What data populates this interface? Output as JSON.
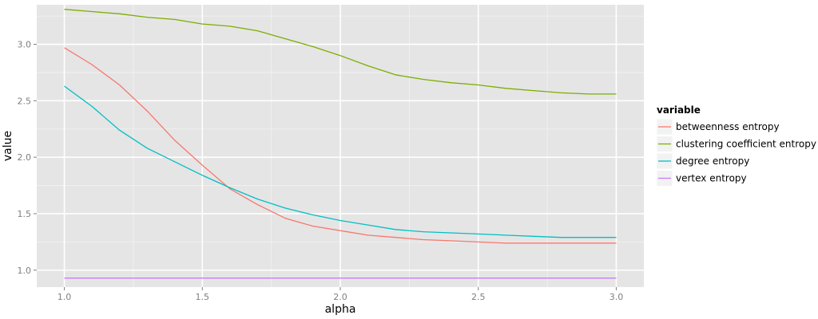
{
  "chart_data": {
    "type": "line",
    "title": "",
    "xlabel": "alpha",
    "ylabel": "value",
    "xlim": [
      0.9,
      3.1
    ],
    "ylim": [
      0.85,
      3.35
    ],
    "xticks": [
      1.0,
      1.5,
      2.0,
      2.5,
      3.0
    ],
    "xtick_labels": [
      "1.0",
      "1.5",
      "2.0",
      "2.5",
      "3.0"
    ],
    "yticks": [
      1.0,
      1.5,
      2.0,
      2.5,
      3.0
    ],
    "ytick_labels": [
      "1.0",
      "1.5",
      "2.0",
      "2.5",
      "3.0"
    ],
    "grid": true,
    "legend": {
      "title": "variable",
      "position": "right",
      "entries": [
        "betweenness entropy",
        "clustering coefficient entropy",
        "degree entropy",
        "vertex entropy"
      ]
    },
    "x": [
      1.0,
      1.1,
      1.2,
      1.3,
      1.4,
      1.5,
      1.6,
      1.7,
      1.8,
      1.9,
      2.0,
      2.1,
      2.2,
      2.3,
      2.4,
      2.5,
      2.6,
      2.7,
      2.8,
      2.9,
      3.0
    ],
    "series": [
      {
        "name": "betweenness entropy",
        "color": "#F8766D",
        "values": [
          2.97,
          2.82,
          2.64,
          2.41,
          2.15,
          1.93,
          1.72,
          1.58,
          1.46,
          1.39,
          1.35,
          1.31,
          1.29,
          1.27,
          1.26,
          1.25,
          1.24,
          1.24,
          1.24,
          1.24,
          1.24
        ]
      },
      {
        "name": "clustering coefficient entropy",
        "color": "#7CAE00",
        "values": [
          3.31,
          3.29,
          3.27,
          3.24,
          3.22,
          3.18,
          3.16,
          3.12,
          3.05,
          2.98,
          2.9,
          2.81,
          2.73,
          2.69,
          2.66,
          2.64,
          2.61,
          2.59,
          2.57,
          2.56,
          2.56
        ]
      },
      {
        "name": "degree entropy",
        "color": "#00BFC4",
        "values": [
          2.63,
          2.45,
          2.24,
          2.08,
          1.96,
          1.84,
          1.73,
          1.63,
          1.55,
          1.49,
          1.44,
          1.4,
          1.36,
          1.34,
          1.33,
          1.32,
          1.31,
          1.3,
          1.29,
          1.29,
          1.29
        ]
      },
      {
        "name": "vertex entropy",
        "color": "#C77CFF",
        "values": [
          0.93,
          0.93,
          0.93,
          0.93,
          0.93,
          0.93,
          0.93,
          0.93,
          0.93,
          0.93,
          0.93,
          0.93,
          0.93,
          0.93,
          0.93,
          0.93,
          0.93,
          0.93,
          0.93,
          0.93,
          0.93
        ]
      }
    ]
  }
}
